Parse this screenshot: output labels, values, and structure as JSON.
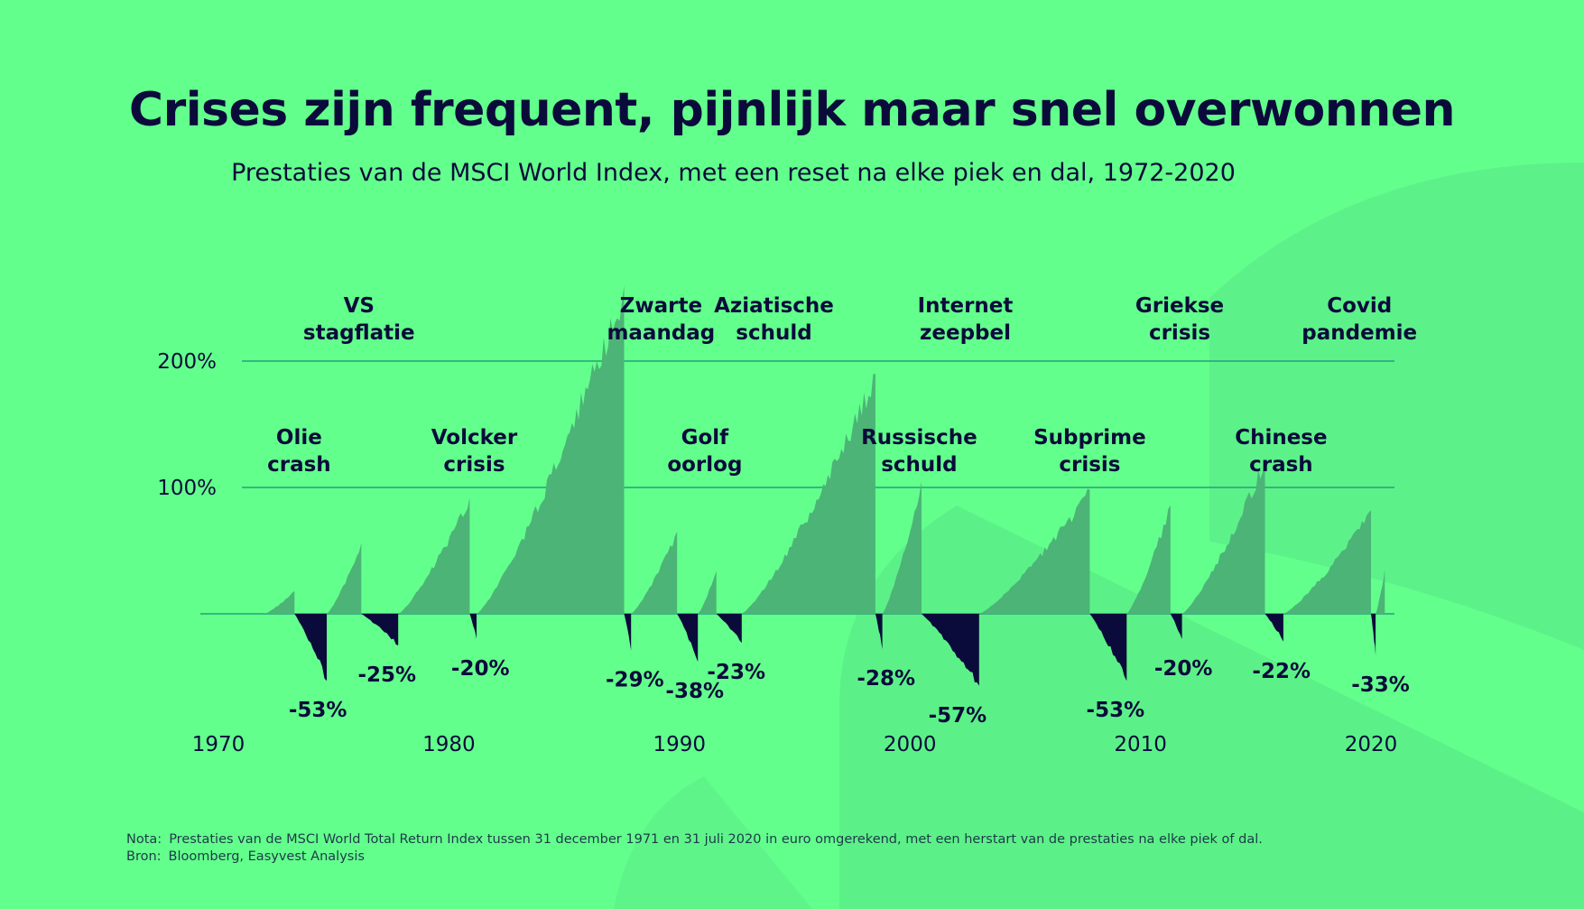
{
  "title": "Crises zijn frequent, pijnlijk maar snel overwonnen",
  "subtitle": "Prestaties van de MSCI World Index, met een reset na elke piek en dal, 1972-2020",
  "note_label": "Nota:",
  "note_text": "Prestaties van de MSCI World Total Return Index tussen 31 december 1971 en 31 juli 2020 in euro omgerekend, met een herstart van de prestaties na elke piek of dal.",
  "source_label": "Bron:",
  "source_text": "Bloomberg, Easyvest Analysis",
  "colors": {
    "background": "#63ff8c",
    "gain_area": "#4cb476",
    "loss_area": "#0b0b3b",
    "gridline": "#2a9d7a",
    "text": "#0b0b3b"
  },
  "chart_data": {
    "type": "area",
    "title": "Crises zijn frequent, pijnlijk maar snel overwonnen",
    "subtitle": "Prestaties van de MSCI World Index, met een reset na elke piek en dal, 1972-2020",
    "xlim": [
      1970,
      2021
    ],
    "ylim": [
      -60,
      260
    ],
    "x_ticks": [
      "1970",
      "1980",
      "1990",
      "2000",
      "2010",
      "2020"
    ],
    "y_ticks": [
      {
        "value": 100,
        "label": "100%"
      },
      {
        "value": 200,
        "label": "200%"
      }
    ],
    "grid": true,
    "rallies": [
      {
        "start": 1972.0,
        "end": 1973.3,
        "peak": 18
      },
      {
        "start": 1974.7,
        "end": 1976.2,
        "peak": 56
      },
      {
        "start": 1977.8,
        "end": 1980.9,
        "peak": 92
      },
      {
        "start": 1981.2,
        "end": 1987.6,
        "peak": 260
      },
      {
        "start": 1987.9,
        "end": 1989.9,
        "peak": 65
      },
      {
        "start": 1990.8,
        "end": 1991.6,
        "peak": 34
      },
      {
        "start": 1992.7,
        "end": 1998.5,
        "peak": 190
      },
      {
        "start": 1998.8,
        "end": 2000.5,
        "peak": 105
      },
      {
        "start": 2003.0,
        "end": 2007.8,
        "peak": 98
      },
      {
        "start": 2009.4,
        "end": 2011.3,
        "peak": 86
      },
      {
        "start": 2011.8,
        "end": 2015.4,
        "peak": 122
      },
      {
        "start": 2016.2,
        "end": 2020.0,
        "peak": 82
      },
      {
        "start": 2020.2,
        "end": 2020.6,
        "peak": 35
      }
    ],
    "drawdowns": [
      {
        "start": 1973.3,
        "end": 1974.7,
        "value": -53,
        "label": "-53%"
      },
      {
        "start": 1976.2,
        "end": 1977.8,
        "value": -25,
        "label": "-25%"
      },
      {
        "start": 1980.9,
        "end": 1981.2,
        "value": -20,
        "label": "-20%"
      },
      {
        "start": 1987.6,
        "end": 1987.9,
        "value": -29,
        "label": "-29%"
      },
      {
        "start": 1989.9,
        "end": 1990.8,
        "value": -38,
        "label": "-38%"
      },
      {
        "start": 1991.6,
        "end": 1992.7,
        "value": -23,
        "label": "-23%"
      },
      {
        "start": 1998.5,
        "end": 1998.8,
        "value": -28,
        "label": "-28%"
      },
      {
        "start": 2000.5,
        "end": 2003.0,
        "value": -57,
        "label": "-57%"
      },
      {
        "start": 2007.8,
        "end": 2009.4,
        "value": -53,
        "label": "-53%"
      },
      {
        "start": 2011.3,
        "end": 2011.8,
        "value": -20,
        "label": "-20%"
      },
      {
        "start": 2015.4,
        "end": 2016.2,
        "value": -22,
        "label": "-22%"
      },
      {
        "start": 2020.0,
        "end": 2020.2,
        "value": -33,
        "label": "-33%"
      }
    ],
    "annotations": [
      {
        "lines": [
          "VS",
          "stagflatie"
        ],
        "tier": "high",
        "x": 1976.1
      },
      {
        "lines": [
          "Zwarte",
          "maandag"
        ],
        "tier": "high",
        "x": 1989.2
      },
      {
        "lines": [
          "Aziatische",
          "schuld"
        ],
        "tier": "high",
        "x": 1994.1
      },
      {
        "lines": [
          "Internet",
          "zeepbel"
        ],
        "tier": "high",
        "x": 2002.4
      },
      {
        "lines": [
          "Griekse",
          "crisis"
        ],
        "tier": "high",
        "x": 2011.7
      },
      {
        "lines": [
          "Covid",
          "pandemie"
        ],
        "tier": "high",
        "x": 2019.5
      },
      {
        "lines": [
          "Olie",
          "crash"
        ],
        "tier": "low",
        "x": 1973.5
      },
      {
        "lines": [
          "Volcker",
          "crisis"
        ],
        "tier": "low",
        "x": 1981.1
      },
      {
        "lines": [
          "Golf",
          "oorlog"
        ],
        "tier": "low",
        "x": 1991.1
      },
      {
        "lines": [
          "Russische",
          "schuld"
        ],
        "tier": "low",
        "x": 2000.4
      },
      {
        "lines": [
          "Subprime",
          "crisis"
        ],
        "tier": "low",
        "x": 2007.8
      },
      {
        "lines": [
          "Chinese",
          "crash"
        ],
        "tier": "low",
        "x": 2016.1
      }
    ]
  }
}
